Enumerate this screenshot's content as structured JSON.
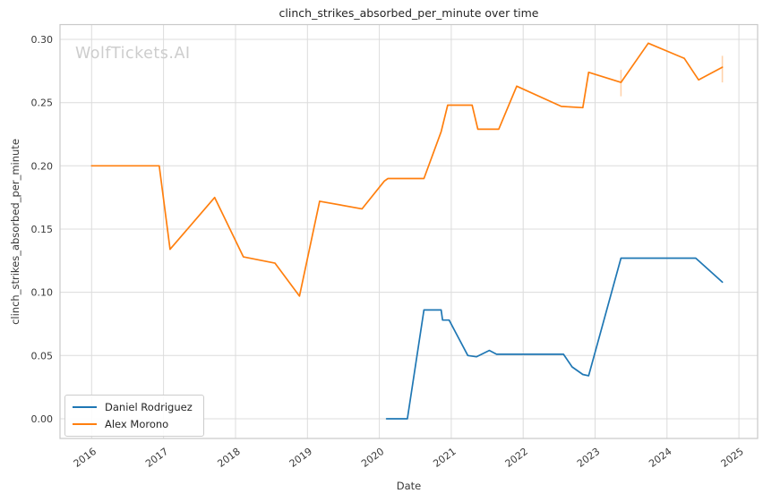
{
  "watermark": "WolfTickets.AI",
  "colors": {
    "grid": "#dcdcdc",
    "plot_border": "#c9c9c9",
    "text": "#3a3a3a",
    "watermark": "#cdcdcd",
    "series_daniel": "#1f77b4",
    "series_alex": "#ff7f0e"
  },
  "chart_data": {
    "type": "line",
    "title": "clinch_strikes_absorbed_per_minute over time",
    "xlabel": "Date",
    "ylabel": "clinch_strikes_absorbed_per_minute",
    "grid": true,
    "legend_position": "lower left",
    "xlim": [
      2015.56,
      2025.26
    ],
    "ylim": [
      -0.0156,
      0.3117
    ],
    "x_ticks": [
      2016,
      2017,
      2018,
      2019,
      2020,
      2021,
      2022,
      2023,
      2024,
      2025
    ],
    "x_tick_labels": [
      "2016",
      "2017",
      "2018",
      "2019",
      "2020",
      "2021",
      "2022",
      "2023",
      "2024",
      "2025"
    ],
    "y_ticks": [
      0.0,
      0.05,
      0.1,
      0.15,
      0.2,
      0.25,
      0.3
    ],
    "series": [
      {
        "name": "Daniel Rodriguez",
        "color": "#1f77b4",
        "points": [
          [
            2020.1,
            0.0
          ],
          [
            2020.39,
            0.0
          ],
          [
            2020.62,
            0.086
          ],
          [
            2020.86,
            0.086
          ],
          [
            2020.88,
            0.078
          ],
          [
            2020.97,
            0.078
          ],
          [
            2021.23,
            0.05
          ],
          [
            2021.35,
            0.049
          ],
          [
            2021.53,
            0.054
          ],
          [
            2021.63,
            0.051
          ],
          [
            2022.56,
            0.051
          ],
          [
            2022.68,
            0.041
          ],
          [
            2022.83,
            0.035
          ],
          [
            2022.91,
            0.034
          ],
          [
            2023.36,
            0.127
          ],
          [
            2024.4,
            0.127
          ],
          [
            2024.77,
            0.108
          ]
        ],
        "error_bars": []
      },
      {
        "name": "Alex Morono",
        "color": "#ff7f0e",
        "points": [
          [
            2016.0,
            0.2
          ],
          [
            2016.94,
            0.2
          ],
          [
            2017.09,
            0.134
          ],
          [
            2017.71,
            0.175
          ],
          [
            2018.11,
            0.128
          ],
          [
            2018.55,
            0.123
          ],
          [
            2018.89,
            0.097
          ],
          [
            2019.17,
            0.172
          ],
          [
            2019.76,
            0.166
          ],
          [
            2020.07,
            0.188
          ],
          [
            2020.12,
            0.19
          ],
          [
            2020.62,
            0.19
          ],
          [
            2020.86,
            0.227
          ],
          [
            2020.95,
            0.248
          ],
          [
            2021.29,
            0.248
          ],
          [
            2021.37,
            0.229
          ],
          [
            2021.66,
            0.229
          ],
          [
            2021.91,
            0.263
          ],
          [
            2022.53,
            0.247
          ],
          [
            2022.83,
            0.246
          ],
          [
            2022.91,
            0.274
          ],
          [
            2023.36,
            0.266
          ],
          [
            2023.74,
            0.297
          ],
          [
            2024.24,
            0.285
          ],
          [
            2024.44,
            0.268
          ],
          [
            2024.77,
            0.278
          ]
        ],
        "error_bars": [
          {
            "x": 2023.36,
            "lo": 0.255,
            "hi": 0.276
          },
          {
            "x": 2024.77,
            "lo": 0.266,
            "hi": 0.287
          }
        ]
      }
    ]
  }
}
